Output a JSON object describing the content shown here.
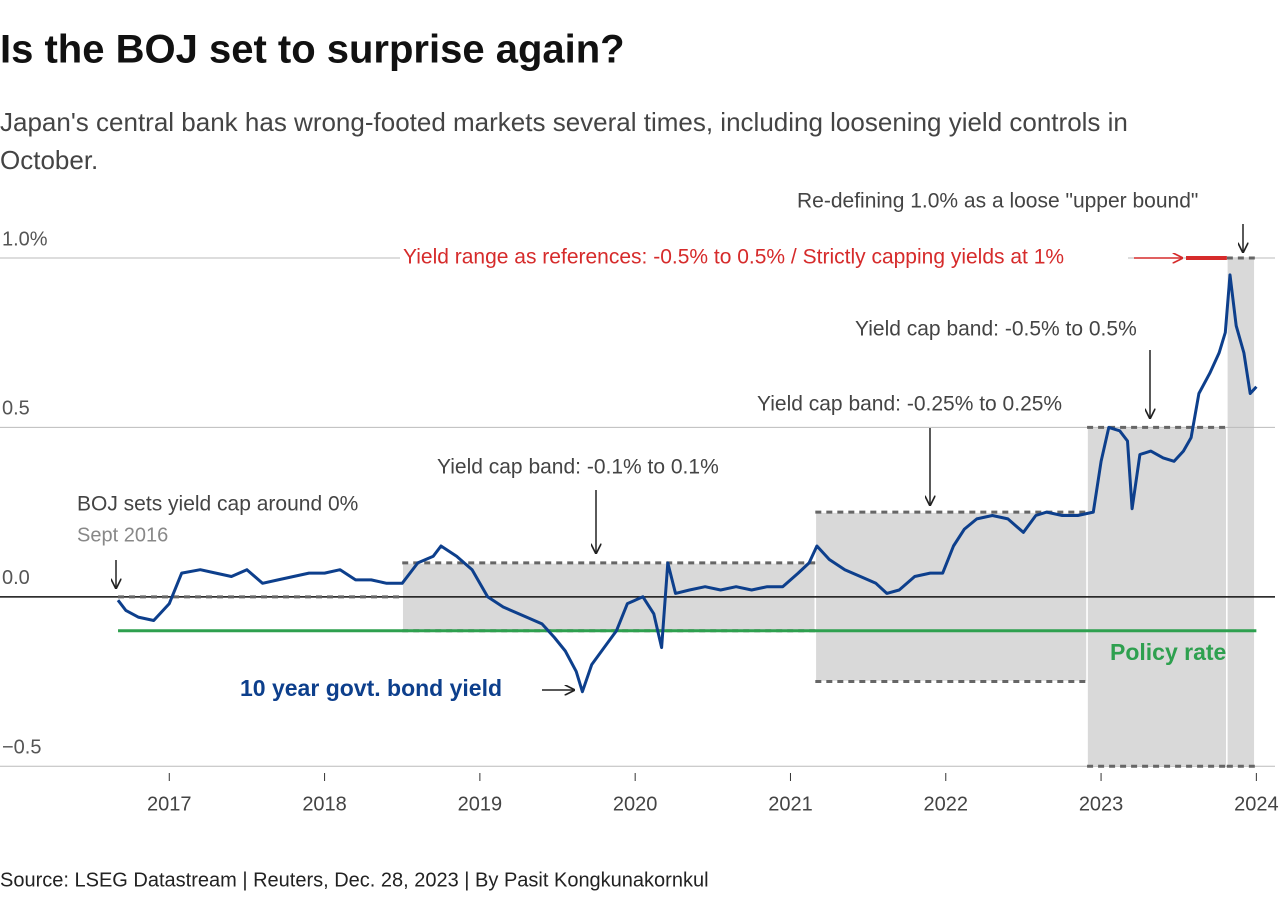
{
  "chart_data": {
    "type": "line",
    "title": "Is the BOJ set to surprise again?",
    "subtitle": "Japan's central bank has wrong-footed markets several times, including loosening yield controls in October.",
    "source": "Source: LSEG Datastream | Reuters, Dec. 28, 2023 | By Pasit Kongkunakornkul",
    "xlim": [
      2015.91,
      2024.12
    ],
    "ylim": [
      -0.52,
      1.0
    ],
    "xticks": [
      2017,
      2018,
      2019,
      2020,
      2021,
      2022,
      2023,
      2024
    ],
    "yticks": [
      {
        "value": 1.0,
        "label": "1.0%"
      },
      0.5,
      {
        "value": 0.0,
        "label": "0.0"
      },
      {
        "value": -0.5,
        "label": "−0.5"
      }
    ],
    "grid": true,
    "x": [
      2016.67,
      2016.72,
      2016.8,
      2016.9,
      2017.0,
      2017.08,
      2017.2,
      2017.3,
      2017.4,
      2017.5,
      2017.6,
      2017.7,
      2017.8,
      2017.9,
      2018.0,
      2018.1,
      2018.2,
      2018.3,
      2018.4,
      2018.5,
      2018.6,
      2018.7,
      2018.75,
      2018.85,
      2018.95,
      2019.05,
      2019.15,
      2019.3,
      2019.4,
      2019.48,
      2019.55,
      2019.62,
      2019.66,
      2019.72,
      2019.8,
      2019.88,
      2019.95,
      2020.05,
      2020.12,
      2020.17,
      2020.21,
      2020.26,
      2020.35,
      2020.45,
      2020.55,
      2020.65,
      2020.75,
      2020.85,
      2020.95,
      2021.05,
      2021.12,
      2021.17,
      2021.25,
      2021.35,
      2021.45,
      2021.55,
      2021.62,
      2021.7,
      2021.8,
      2021.9,
      2021.98,
      2022.05,
      2022.12,
      2022.2,
      2022.3,
      2022.4,
      2022.5,
      2022.58,
      2022.65,
      2022.75,
      2022.85,
      2022.95,
      2023.0,
      2023.05,
      2023.12,
      2023.17,
      2023.2,
      2023.25,
      2023.32,
      2023.4,
      2023.47,
      2023.53,
      2023.58,
      2023.63,
      2023.7,
      2023.76,
      2023.8,
      2023.83,
      2023.87,
      2023.92,
      2023.96,
      2024.0
    ],
    "series": [
      {
        "name": "10 year govt. bond yield",
        "color": "#0d3f8c",
        "values": [
          -0.01,
          -0.04,
          -0.06,
          -0.07,
          -0.02,
          0.07,
          0.08,
          0.07,
          0.06,
          0.08,
          0.04,
          0.05,
          0.06,
          0.07,
          0.07,
          0.08,
          0.05,
          0.05,
          0.04,
          0.04,
          0.1,
          0.12,
          0.15,
          0.12,
          0.08,
          0.0,
          -0.03,
          -0.06,
          -0.08,
          -0.12,
          -0.16,
          -0.22,
          -0.28,
          -0.2,
          -0.15,
          -0.1,
          -0.02,
          0.0,
          -0.05,
          -0.15,
          0.1,
          0.01,
          0.02,
          0.03,
          0.02,
          0.03,
          0.02,
          0.03,
          0.03,
          0.07,
          0.1,
          0.15,
          0.11,
          0.08,
          0.06,
          0.04,
          0.01,
          0.02,
          0.06,
          0.07,
          0.07,
          0.15,
          0.2,
          0.23,
          0.24,
          0.23,
          0.19,
          0.24,
          0.25,
          0.24,
          0.24,
          0.25,
          0.4,
          0.5,
          0.49,
          0.46,
          0.26,
          0.42,
          0.43,
          0.41,
          0.4,
          0.43,
          0.47,
          0.6,
          0.66,
          0.72,
          0.78,
          0.95,
          0.8,
          0.72,
          0.6,
          0.62
        ]
      }
    ],
    "bands": [
      {
        "start": 2016.67,
        "end": 2018.5,
        "low": 0.0,
        "high": 0.0
      },
      {
        "start": 2018.5,
        "end": 2021.16,
        "low": -0.1,
        "high": 0.1
      },
      {
        "start": 2021.16,
        "end": 2022.91,
        "low": -0.25,
        "high": 0.25
      },
      {
        "start": 2022.91,
        "end": 2023.81,
        "low": -0.5,
        "high": 0.5
      },
      {
        "start": 2023.81,
        "end": 2023.99,
        "low": -0.5,
        "high": 1.0
      }
    ],
    "policy_rate": {
      "label": "Policy rate",
      "value": -0.1,
      "start": 2016.67,
      "end": 2024.0,
      "color": "#2ea04f"
    },
    "annotations": [
      {
        "text": "BOJ sets yield cap around 0%",
        "sub": "Sept 2016"
      },
      {
        "text": "Yield cap band: -0.1% to 0.1%"
      },
      {
        "text": "Yield cap band: -0.25% to 0.25%"
      },
      {
        "text": "Yield cap band: -0.5% to 0.5%"
      },
      {
        "text": "Re-defining 1.0% as a loose \"upper bound\""
      },
      {
        "text": "Yield range as references: -0.5% to 0.5% / Strictly capping yields at 1%",
        "color": "#d62b2b"
      }
    ]
  }
}
